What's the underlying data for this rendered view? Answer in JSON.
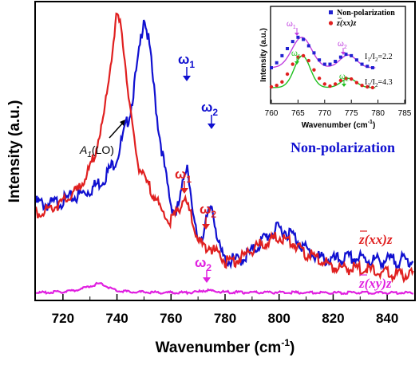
{
  "chart_data": {
    "type": "line",
    "xlabel": "Wavenumber (cm",
    "xlabel_sup": "-1",
    "xlabel_end": ")",
    "ylabel": "Intensity (a.u.)",
    "xlim": [
      710,
      850
    ],
    "xticks": [
      "720",
      "740",
      "760",
      "780",
      "800",
      "820",
      "840"
    ],
    "series": [
      {
        "name": "Non-polarization",
        "color": "#1010d0",
        "x": [
          710,
          715,
          720,
          725,
          730,
          735,
          740,
          745,
          748,
          750,
          752,
          755,
          758,
          760,
          762,
          764,
          765,
          766,
          767,
          768,
          770,
          772,
          774,
          775,
          776,
          778,
          780,
          785,
          790,
          795,
          800,
          805,
          810,
          815,
          820,
          825,
          830,
          835,
          840,
          845,
          850
        ],
        "y": [
          0.67,
          0.66,
          0.68,
          0.7,
          0.73,
          0.78,
          0.88,
          1.1,
          1.35,
          1.55,
          1.4,
          1.05,
          0.8,
          0.66,
          0.62,
          0.72,
          0.82,
          0.85,
          0.76,
          0.6,
          0.5,
          0.53,
          0.62,
          0.66,
          0.6,
          0.45,
          0.4,
          0.4,
          0.44,
          0.51,
          0.55,
          0.52,
          0.45,
          0.41,
          0.4,
          0.41,
          0.41,
          0.4,
          0.4,
          0.4,
          0.4
        ]
      },
      {
        "name": "z(xx)z",
        "color": "#e02020",
        "x": [
          710,
          715,
          720,
          725,
          730,
          735,
          738,
          740,
          742,
          744,
          746,
          748,
          750,
          752,
          754,
          756,
          758,
          760,
          762,
          764,
          765,
          766,
          768,
          770,
          772,
          774,
          776,
          778,
          780,
          785,
          790,
          795,
          800,
          805,
          810,
          815,
          820,
          825,
          830,
          835,
          840,
          845,
          850
        ],
        "y": [
          0.62,
          0.64,
          0.67,
          0.72,
          0.82,
          1.05,
          1.35,
          1.55,
          1.45,
          1.2,
          0.98,
          0.84,
          0.78,
          0.74,
          0.7,
          0.64,
          0.6,
          0.58,
          0.62,
          0.67,
          0.69,
          0.66,
          0.58,
          0.49,
          0.46,
          0.47,
          0.44,
          0.43,
          0.39,
          0.4,
          0.45,
          0.48,
          0.51,
          0.48,
          0.43,
          0.4,
          0.37,
          0.36,
          0.36,
          0.35,
          0.34,
          0.33,
          0.33
        ]
      },
      {
        "name": "z(xy)z",
        "color": "#e020e0",
        "x": [
          710,
          715,
          720,
          725,
          730,
          733,
          735,
          738,
          740,
          745,
          750,
          755,
          760,
          765,
          770,
          772,
          775,
          780,
          790,
          800,
          810,
          820,
          830,
          840,
          850
        ],
        "y": [
          0.235,
          0.237,
          0.24,
          0.247,
          0.265,
          0.278,
          0.272,
          0.255,
          0.245,
          0.24,
          0.238,
          0.236,
          0.236,
          0.236,
          0.238,
          0.246,
          0.244,
          0.238,
          0.236,
          0.237,
          0.236,
          0.235,
          0.236,
          0.235,
          0.235
        ]
      }
    ],
    "annotations": {
      "a1lo": "A",
      "a1lo_sub": "1",
      "a1lo_end": "(LO)",
      "omega": "ω",
      "sub1": "1",
      "sub2": "2",
      "label_nonpol": "Non-polarization",
      "label_xx": "z(xx)z",
      "label_xy": "z(xy)z"
    },
    "inset": {
      "type": "scatter+line",
      "xlabel": "Wavenumber (cm",
      "xlabel_sup": "-1",
      "xlabel_end": ")",
      "ylabel": "Intensity (a.u.)",
      "xlim": [
        760,
        785
      ],
      "xticks": [
        "760",
        "765",
        "770",
        "775",
        "780",
        "785"
      ],
      "legend": [
        "Non-polarization",
        "z(xx)z"
      ],
      "ratio1": "I",
      "ratio1_sub_a": "1",
      "ratio1_mid": "/I",
      "ratio1_sub_b": "2",
      "ratio1_val": "=2.2",
      "ratio2": "I",
      "ratio2_sub_a": "1",
      "ratio2_mid": "/I",
      "ratio2_sub_b": "2",
      "ratio2_val": "=4.3",
      "series_nonpol": {
        "x": [
          760,
          761,
          762,
          763,
          764,
          765,
          766,
          767,
          768,
          769,
          770,
          771,
          772,
          773,
          774,
          775,
          776,
          777,
          778,
          779
        ],
        "y": [
          0.45,
          0.52,
          0.62,
          0.72,
          0.82,
          0.88,
          0.85,
          0.76,
          0.66,
          0.56,
          0.5,
          0.5,
          0.54,
          0.6,
          0.64,
          0.62,
          0.56,
          0.5,
          0.47,
          0.45
        ],
        "color": "#2020d0",
        "fit_color": "#c040e0"
      },
      "series_xx": {
        "x": [
          760,
          761,
          762,
          763,
          764,
          765,
          766,
          767,
          768,
          769,
          770,
          771,
          772,
          773,
          774,
          775,
          776,
          777,
          778,
          779
        ],
        "y": [
          0.18,
          0.2,
          0.25,
          0.36,
          0.5,
          0.6,
          0.62,
          0.55,
          0.42,
          0.3,
          0.22,
          0.19,
          0.22,
          0.27,
          0.3,
          0.29,
          0.24,
          0.2,
          0.18,
          0.17
        ],
        "color": "#e02020",
        "fit_color": "#20c020"
      }
    }
  }
}
